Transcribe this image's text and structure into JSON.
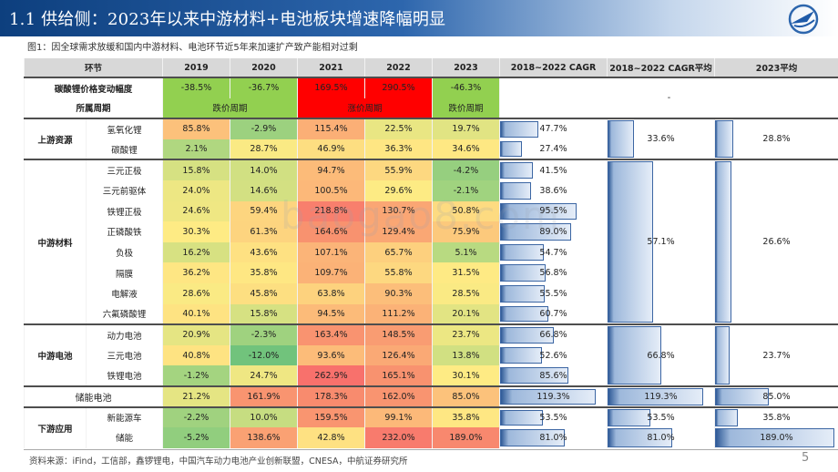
{
  "title": "1.1 供给侧：2023年以来中游材料+电池板块增速降幅明显",
  "caption": "图1：因全球需求放缓和国内中游材料、电池环节近5年来加速扩产致产能相对过剩",
  "watermark": "baogao8.com",
  "header": [
    "环节",
    "2019",
    "2020",
    "2021",
    "2022",
    "2023",
    "2018~2022 CAGR",
    "2018~2022 CAGR平均",
    "2023平均"
  ],
  "price_row": {
    "label": "碳酸锂价格变动幅度",
    "vals": [
      "-38.5%",
      "-36.7%",
      "169.5%",
      "290.5%",
      "-46.3%"
    ],
    "avg_text": "-"
  },
  "cycle_row": {
    "label": "所属周期",
    "c1": "跌价周期",
    "c2": "涨价周期",
    "c3": "跌价周期"
  },
  "colors": {
    "price_neg": "#92d050",
    "price_pos": "#ff0000",
    "header_bg": "#d8d8d8",
    "accent": "#0d3f7e"
  },
  "sections": [
    {
      "name": "上游资源",
      "cagr_avg": "33.6%",
      "avg_2023": "28.8%",
      "rows": [
        {
          "name": "氢氧化锂",
          "ind": false,
          "vals": [
            "85.8%",
            "-2.9%",
            "115.4%",
            "22.5%",
            "19.7%"
          ],
          "cagr": "47.7%"
        },
        {
          "name": "碳酸锂",
          "ind": false,
          "vals": [
            "2.1%",
            "28.7%",
            "46.9%",
            "36.3%",
            "34.6%"
          ],
          "cagr": "27.4%"
        }
      ]
    },
    {
      "name": "中游材料",
      "cagr_avg": "57.1%",
      "avg_2023": "26.6%",
      "rows": [
        {
          "name": "三元正极",
          "ind": false,
          "vals": [
            "15.8%",
            "14.0%",
            "94.7%",
            "55.9%",
            "-4.2%"
          ],
          "cagr": "41.5%"
        },
        {
          "name": "三元前驱体",
          "ind": true,
          "vals": [
            "24.0%",
            "14.6%",
            "100.5%",
            "29.6%",
            "-2.1%"
          ],
          "cagr": "38.6%"
        },
        {
          "name": "铁锂正极",
          "ind": false,
          "vals": [
            "24.6%",
            "59.4%",
            "218.8%",
            "130.7%",
            "50.8%"
          ],
          "cagr": "95.5%"
        },
        {
          "name": "正磷酸铁",
          "ind": true,
          "vals": [
            "30.3%",
            "61.3%",
            "164.6%",
            "129.4%",
            "75.9%"
          ],
          "cagr": "89.0%"
        },
        {
          "name": "负极",
          "ind": false,
          "vals": [
            "16.2%",
            "43.6%",
            "107.1%",
            "65.7%",
            "5.1%"
          ],
          "cagr": "54.7%"
        },
        {
          "name": "隔膜",
          "ind": false,
          "vals": [
            "36.2%",
            "35.8%",
            "109.7%",
            "55.8%",
            "31.5%"
          ],
          "cagr": "56.8%"
        },
        {
          "name": "电解液",
          "ind": false,
          "vals": [
            "28.6%",
            "45.8%",
            "63.8%",
            "90.3%",
            "28.5%"
          ],
          "cagr": "55.5%"
        },
        {
          "name": "六氟磷酸锂",
          "ind": true,
          "vals": [
            "40.1%",
            "15.8%",
            "94.5%",
            "111.2%",
            "20.1%"
          ],
          "cagr": "60.7%"
        }
      ]
    },
    {
      "name": "中游电池",
      "cagr_avg": "66.8%",
      "avg_2023": "23.7%",
      "rows": [
        {
          "name": "动力电池",
          "ind": false,
          "vals": [
            "20.9%",
            "-2.3%",
            "163.4%",
            "148.5%",
            "23.7%"
          ],
          "cagr": "66.8%"
        },
        {
          "name": "三元电池",
          "ind": true,
          "vals": [
            "40.8%",
            "-12.0%",
            "93.6%",
            "126.4%",
            "13.8%"
          ],
          "cagr": "52.6%"
        },
        {
          "name": "铁锂电池",
          "ind": true,
          "vals": [
            "-1.2%",
            "24.7%",
            "262.9%",
            "165.1%",
            "30.1%"
          ],
          "cagr": "85.6%"
        }
      ]
    },
    {
      "name": "",
      "cagr_avg": "119.3%",
      "avg_2023": "85.0%",
      "rows": [
        {
          "name": "储能电池",
          "ind": false,
          "vals": [
            "21.2%",
            "161.9%",
            "178.3%",
            "162.0%",
            "85.0%"
          ],
          "cagr": "119.3%"
        }
      ]
    },
    {
      "name": "下游应用",
      "cagr_avg": "",
      "avg_2023": "",
      "rows": [
        {
          "name": "新能源车",
          "ind": false,
          "vals": [
            "-2.2%",
            "10.0%",
            "159.5%",
            "99.1%",
            "35.8%"
          ],
          "cagr": "53.5%",
          "row_cagr_avg": "53.5%",
          "row_avg_2023": "35.8%"
        },
        {
          "name": "储能",
          "ind": false,
          "vals": [
            "-5.2%",
            "138.6%",
            "42.8%",
            "232.0%",
            "189.0%"
          ],
          "cagr": "81.0%",
          "row_cagr_avg": "81.0%",
          "row_avg_2023": "189.0%"
        }
      ]
    }
  ],
  "footer": "资料来源：iFind，工信部，鑫锣锂电，中国汽车动力电池产业创新联盟，CNESA，中航证券研究所",
  "page_number": "5"
}
